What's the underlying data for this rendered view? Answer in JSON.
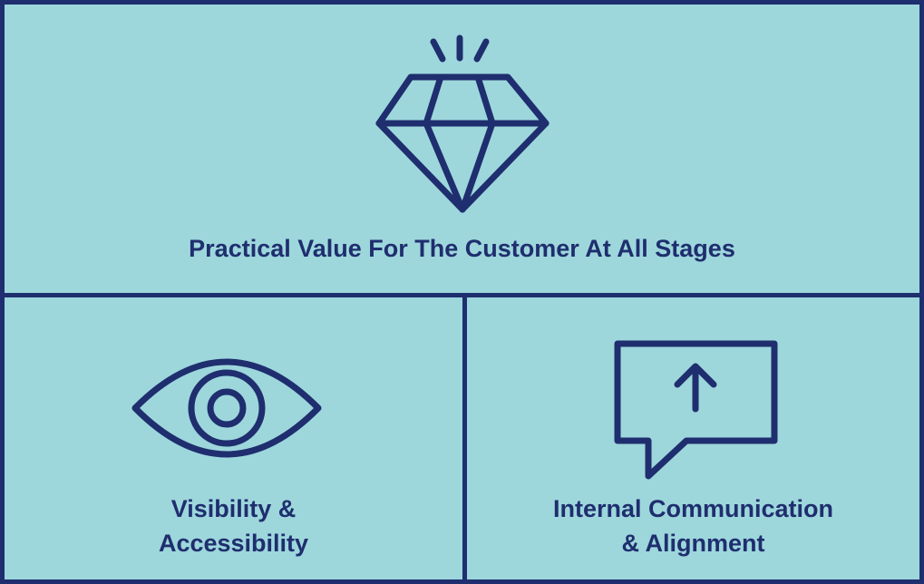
{
  "colors": {
    "background": "#9dd7dc",
    "ink": "#1f2e6e"
  },
  "panels": {
    "top": {
      "icon": "diamond-icon",
      "label": "Practical Value For The Customer At All Stages"
    },
    "bottom_left": {
      "icon": "eye-icon",
      "label_line1": "Visibility &",
      "label_line2": "Accessibility"
    },
    "bottom_right": {
      "icon": "speech-bubble-arrow-up-icon",
      "label_line1": "Internal Communication",
      "label_line2": "& Alignment"
    }
  }
}
